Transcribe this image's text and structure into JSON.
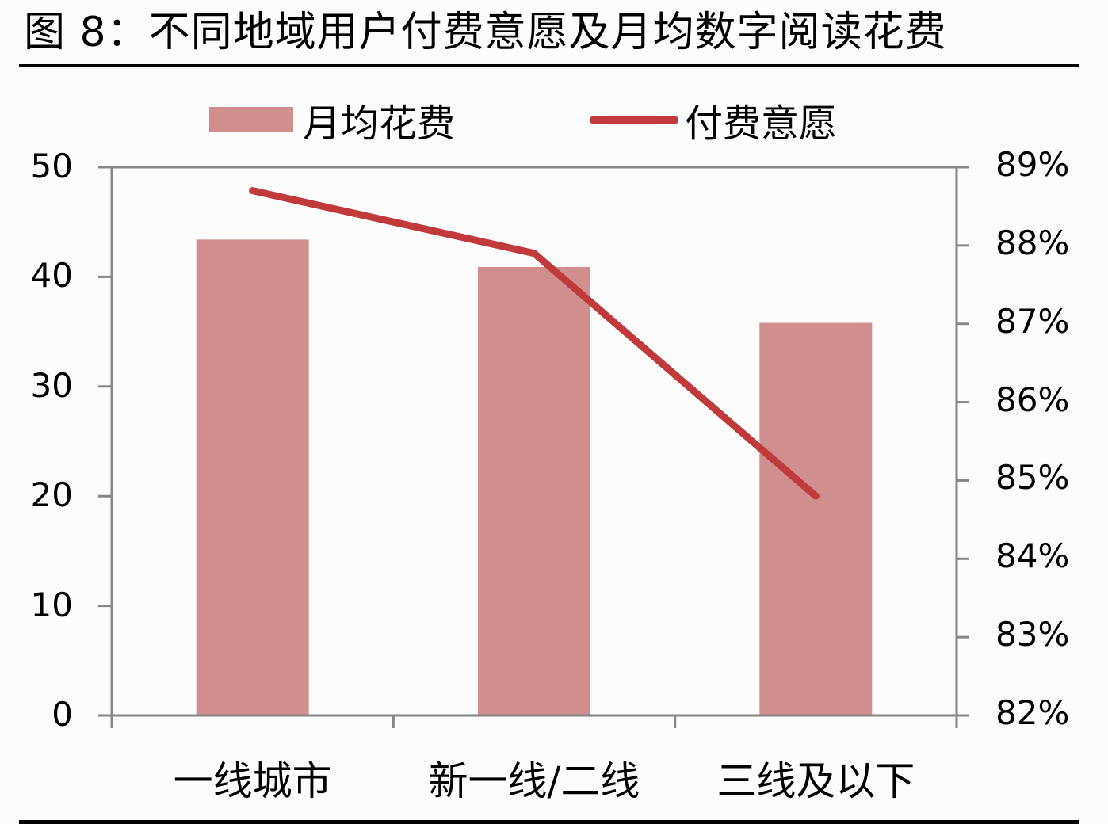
{
  "title": "图 8：不同地域用户付费意愿及月均数字阅读花费",
  "legend": {
    "bar_label": "月均花费",
    "line_label": "付费意愿"
  },
  "colors": {
    "bar": "#d08e8e",
    "line": "#c0393b",
    "axis": "#868686",
    "rule": "#000000"
  },
  "axes": {
    "left_ticks": [
      "50",
      "40",
      "30",
      "20",
      "10",
      "0"
    ],
    "right_ticks": [
      "89%",
      "88%",
      "87%",
      "86%",
      "85%",
      "84%",
      "83%",
      "82%"
    ]
  },
  "categories": [
    "一线城市",
    "新一线/二线",
    "三线及以下"
  ],
  "chart_data": {
    "type": "bar+line",
    "title": "图 8：不同地域用户付费意愿及月均数字阅读花费",
    "categories": [
      "一线城市",
      "新一线/二线",
      "三线及以下"
    ],
    "series": [
      {
        "name": "月均花费",
        "type": "bar",
        "axis": "left",
        "values": [
          43.4,
          40.9,
          35.8
        ]
      },
      {
        "name": "付费意愿",
        "type": "line",
        "axis": "right",
        "values": [
          0.887,
          0.879,
          0.848
        ]
      }
    ],
    "xlabel": "",
    "ylabel_left": "",
    "ylabel_right": "",
    "ylim_left": [
      0,
      50
    ],
    "ylim_right": [
      0.82,
      0.89
    ],
    "left_tick_step": 10,
    "right_tick_step": 0.01,
    "grid": false,
    "legend_position": "top"
  }
}
